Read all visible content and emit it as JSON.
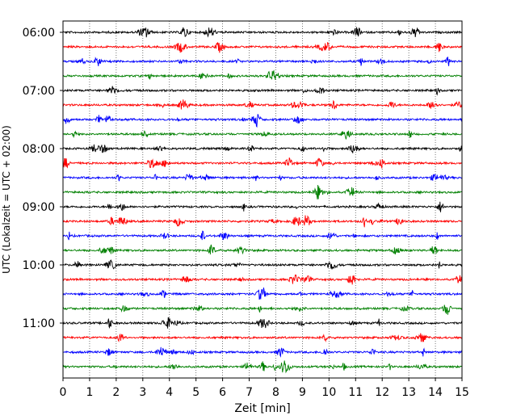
{
  "chart_data": {
    "type": "line",
    "title": "",
    "xlabel": "Zeit  [min]",
    "ylabel": "UTC (Lokalzeit = UTC + 02:00)",
    "xlim": [
      0,
      15
    ],
    "xticks": [
      "0",
      "1",
      "2",
      "3",
      "4",
      "5",
      "6",
      "7",
      "8",
      "9",
      "10",
      "11",
      "12",
      "13",
      "14",
      "15"
    ],
    "ytick_labels": [
      "06:00",
      "07:00",
      "08:00",
      "09:00",
      "10:00",
      "11:00"
    ],
    "grid": "vertical-dotted",
    "trace_colors": [
      "#000000",
      "#ff0000",
      "#0000ff",
      "#008000"
    ],
    "traces": [
      {
        "start": "06:00"
      },
      {
        "start": "06:15"
      },
      {
        "start": "06:30"
      },
      {
        "start": "06:45"
      },
      {
        "start": "07:00"
      },
      {
        "start": "07:15"
      },
      {
        "start": "07:30"
      },
      {
        "start": "07:45"
      },
      {
        "start": "08:00"
      },
      {
        "start": "08:15"
      },
      {
        "start": "08:30"
      },
      {
        "start": "08:45"
      },
      {
        "start": "09:00"
      },
      {
        "start": "09:15"
      },
      {
        "start": "09:30"
      },
      {
        "start": "09:45"
      },
      {
        "start": "10:00"
      },
      {
        "start": "10:15"
      },
      {
        "start": "10:30"
      },
      {
        "start": "10:45"
      },
      {
        "start": "11:00"
      },
      {
        "start": "11:15"
      },
      {
        "start": "11:30"
      },
      {
        "start": "11:45"
      }
    ]
  }
}
